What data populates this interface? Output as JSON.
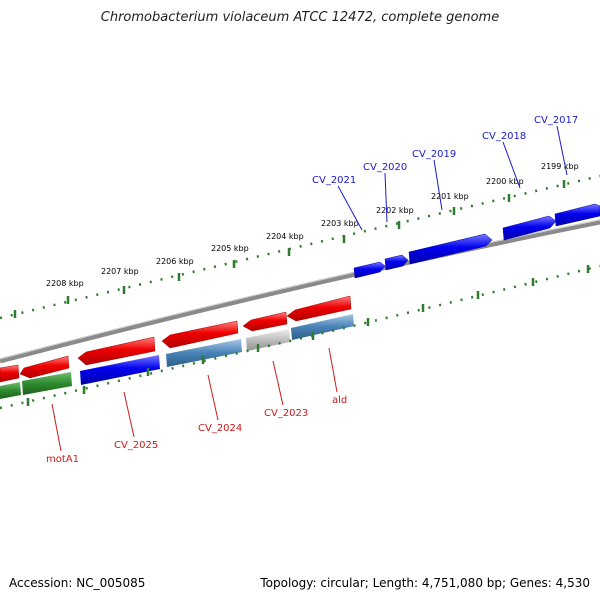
{
  "title": "Chromobacterium violaceum ATCC 12472, complete genome",
  "footer": {
    "accession": "Accession: NC_005085",
    "summary": "Topology: circular; Length: 4,751,080 bp; Genes: 4,530"
  },
  "colors": {
    "backbone": "#8a8a8a",
    "tick": "#2e7d2e",
    "forward_gene": "#0000ee",
    "reverse_gene": "#ee0000",
    "rna_or_other": "#2e8b2e",
    "steel": "#4682b4",
    "grey": "#bdbdbd",
    "forward_label": "#1a1acc",
    "reverse_label": "#cc1a1a"
  },
  "scale_labels": [
    "2208 kbp",
    "2207 kbp",
    "2206 kbp",
    "2205 kbp",
    "2204 kbp",
    "2203 kbp",
    "2202 kbp",
    "2201 kbp",
    "2200 kbp",
    "2199 kbp"
  ],
  "forward_gene_labels": [
    "CV_2021",
    "CV_2020",
    "CV_2019",
    "CV_2018",
    "CV_2017"
  ],
  "reverse_gene_labels": [
    "motA1",
    "CV_2025",
    "CV_2024",
    "CV_2023",
    "ald"
  ]
}
